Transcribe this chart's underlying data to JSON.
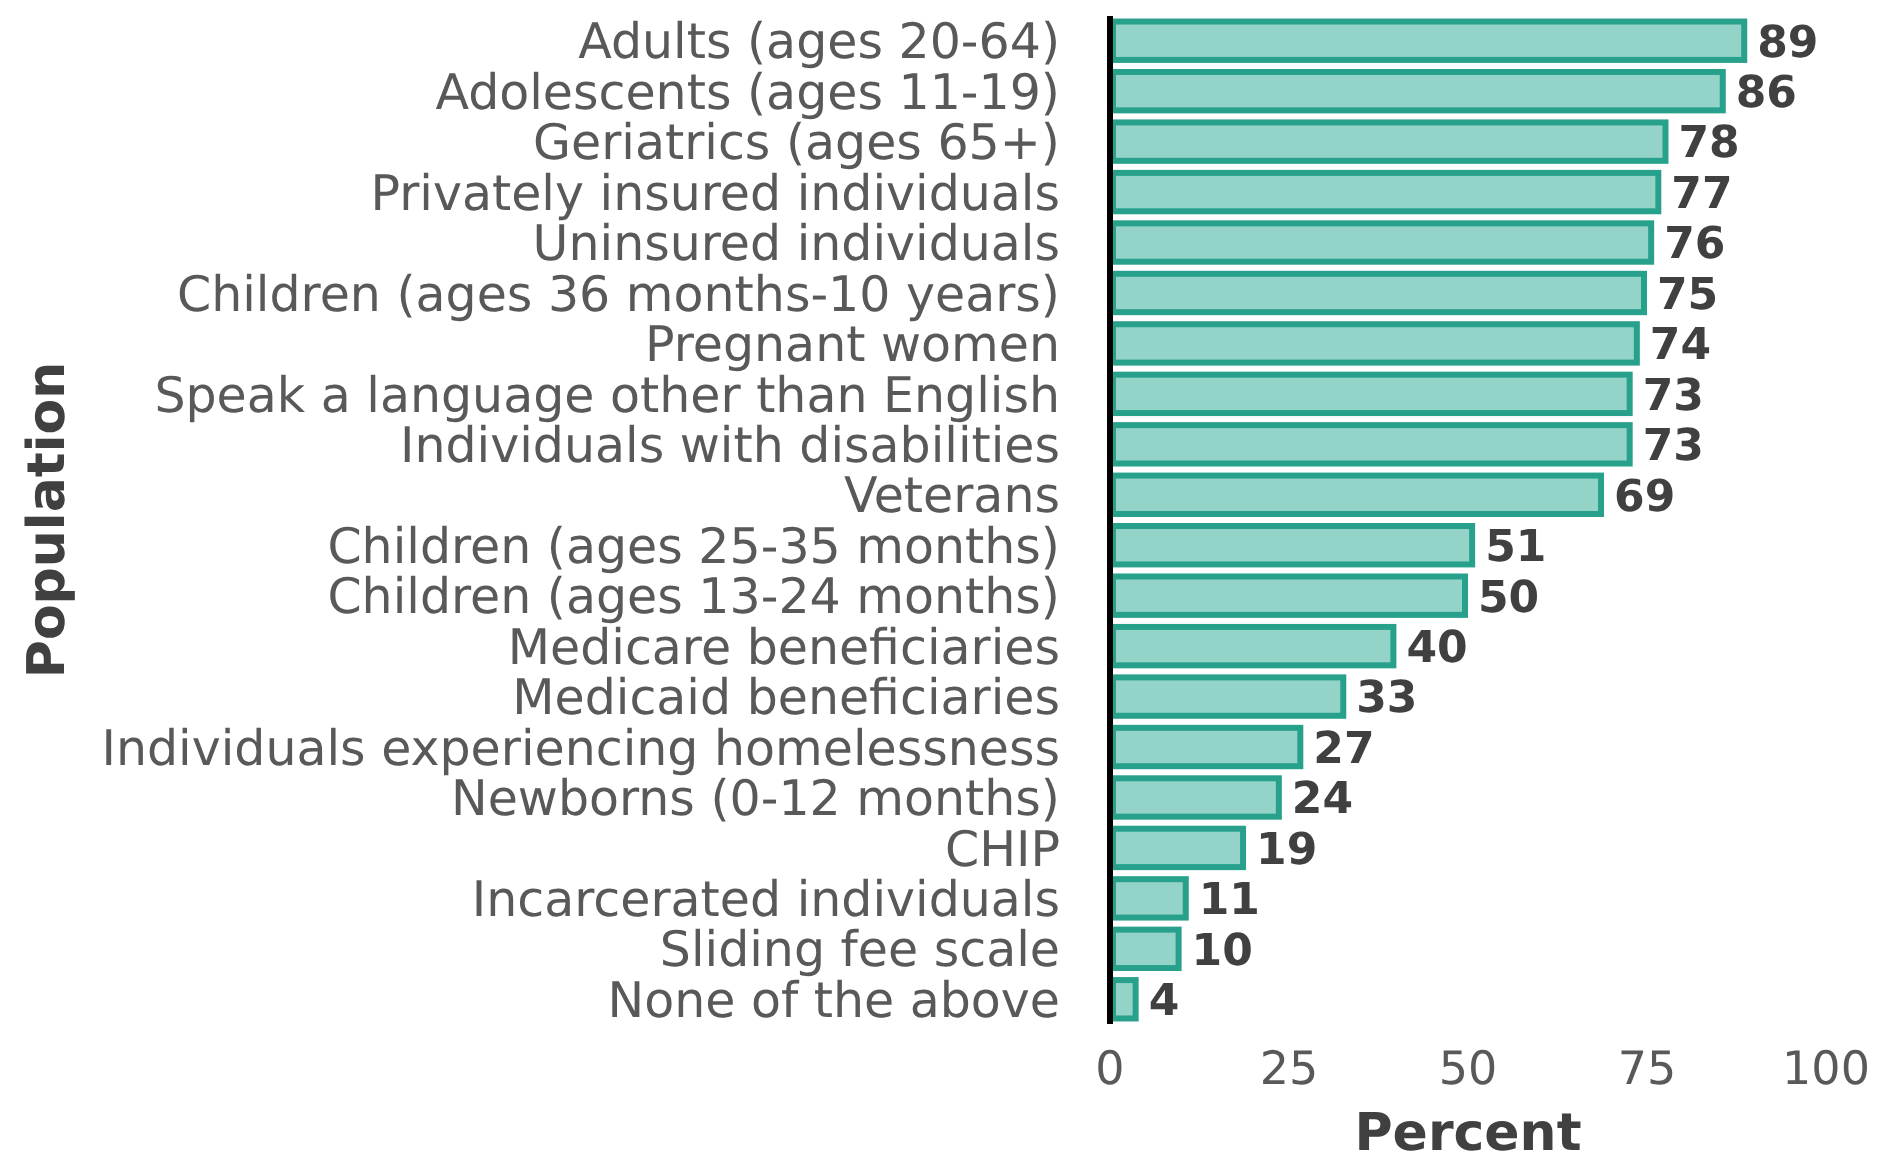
{
  "chart_data": {
    "type": "bar",
    "orientation": "horizontal",
    "xlabel": "Percent",
    "ylabel": "Population",
    "categories": [
      "Adults (ages 20-64)",
      "Adolescents (ages 11-19)",
      "Geriatrics (ages 65+)",
      "Privately insured individuals",
      "Uninsured individuals",
      "Children (ages 36 months-10 years)",
      "Pregnant women",
      "Speak a language other than English",
      "Individuals with disabilities",
      "Veterans",
      "Children (ages 25-35 months)",
      "Children (ages 13-24 months)",
      "Medicare beneficiaries",
      "Medicaid beneficiaries",
      "Individuals experiencing homelessness",
      "Newborns (0-12 months)",
      "CHIP",
      "Incarcerated individuals",
      "Sliding fee scale",
      "None of the above"
    ],
    "values": [
      89,
      86,
      78,
      77,
      76,
      75,
      74,
      73,
      73,
      69,
      51,
      50,
      40,
      33,
      27,
      24,
      19,
      11,
      10,
      4
    ],
    "color": "#93d3c8",
    "xlim": [
      0,
      100
    ],
    "xticks": [
      0,
      25,
      50,
      75,
      100
    ],
    "data_labels": true
  }
}
